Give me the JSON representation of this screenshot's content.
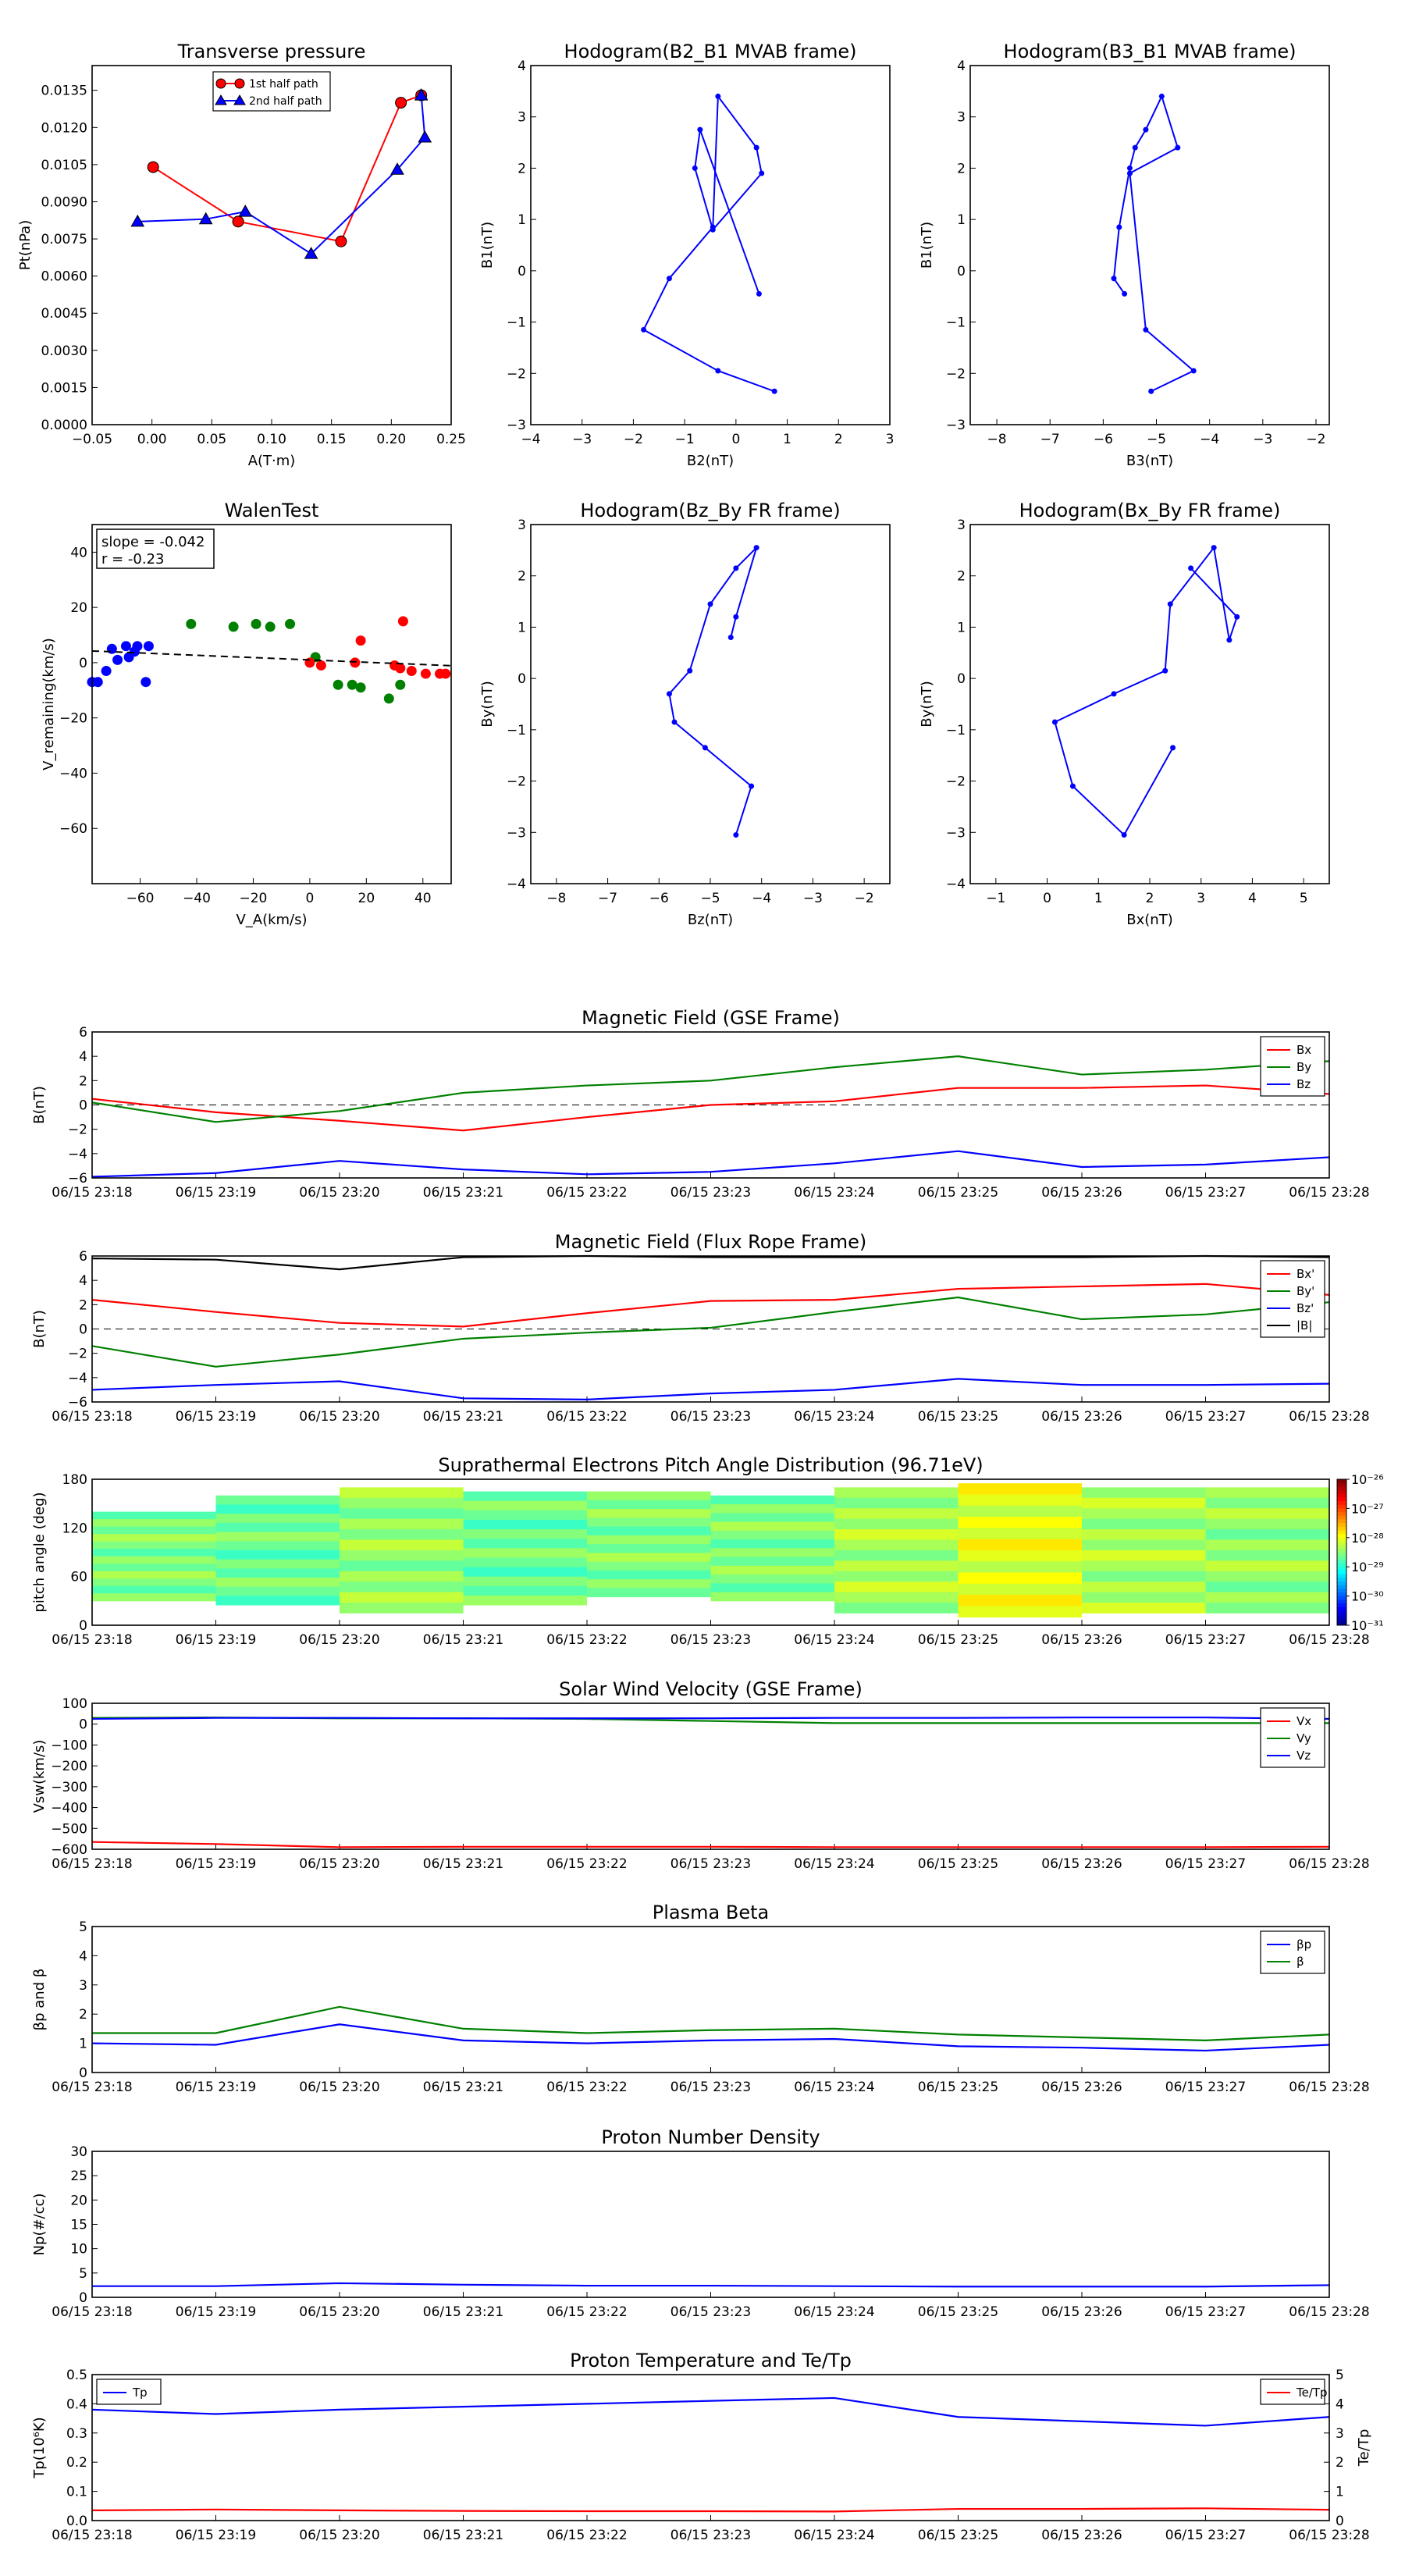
{
  "chart_data": [
    {
      "id": "tp",
      "type": "line",
      "title": "Transverse pressure",
      "xlabel": "A(T·m)",
      "ylabel": "Pt(nPa)",
      "xlim": [
        -0.05,
        0.25
      ],
      "ylim": [
        0,
        0.0145
      ],
      "xticks": [
        "−0.05",
        "0.00",
        "0.05",
        "0.10",
        "0.15",
        "0.20",
        "0.25"
      ],
      "yticks": [
        "0.0000",
        "0.0015",
        "0.0030",
        "0.0045",
        "0.0060",
        "0.0075",
        "0.0090",
        "0.0105",
        "0.0120",
        "0.0135"
      ],
      "legend": "top-center",
      "series": [
        {
          "name": "1st half path",
          "color": "#ff0000",
          "marker": "circle",
          "x": [
            0.001,
            0.072,
            0.158,
            0.208,
            0.225
          ],
          "y": [
            0.0104,
            0.0082,
            0.0074,
            0.013,
            0.0133
          ]
        },
        {
          "name": "2nd half path",
          "color": "#0000ff",
          "marker": "triangle",
          "x": [
            0.225,
            0.228,
            0.205,
            0.133,
            0.078,
            0.045,
            -0.012
          ],
          "y": [
            0.0133,
            0.0116,
            0.0103,
            0.0069,
            0.0086,
            0.0083,
            0.0082
          ]
        }
      ]
    },
    {
      "id": "h1",
      "type": "line",
      "title": "Hodogram(B2_B1 MVAB frame)",
      "xlabel": "B2(nT)",
      "ylabel": "B1(nT)",
      "xlim": [
        -4,
        3
      ],
      "ylim": [
        -3,
        4
      ],
      "xticks": [
        "−4",
        "−3",
        "−2",
        "−1",
        "0",
        "1",
        "2",
        "3"
      ],
      "yticks": [
        "−3",
        "−2",
        "−1",
        "0",
        "1",
        "2",
        "3",
        "4"
      ],
      "series": [
        {
          "color": "#0000ff",
          "x": [
            0.45,
            -0.7,
            -0.8,
            -0.45,
            0.5,
            0.4,
            -0.35,
            -0.45,
            -1.3,
            -1.8,
            -0.35,
            0.75
          ],
          "y": [
            -0.45,
            2.75,
            2.0,
            0.8,
            1.9,
            2.4,
            3.4,
            0.85,
            -0.15,
            -1.15,
            -1.95,
            -2.35
          ]
        }
      ]
    },
    {
      "id": "h2",
      "type": "line",
      "title": "Hodogram(B3_B1 MVAB frame)",
      "xlabel": "B3(nT)",
      "ylabel": "B1(nT)",
      "xlim": [
        -8.5,
        -1.75
      ],
      "ylim": [
        -3,
        4
      ],
      "xticks": [
        "−8",
        "−7",
        "−6",
        "−5",
        "−4",
        "−3",
        "−2"
      ],
      "yticks": [
        "−3",
        "−2",
        "−1",
        "0",
        "1",
        "2",
        "3",
        "4"
      ],
      "series": [
        {
          "color": "#0000ff",
          "x": [
            -5.6,
            -5.8,
            -5.7,
            -5.5,
            -5.4,
            -5.2,
            -4.9,
            -4.6,
            -5.5,
            -5.2,
            -4.3,
            -5.1
          ],
          "y": [
            -0.45,
            -0.15,
            0.85,
            2.0,
            2.4,
            2.75,
            3.4,
            2.4,
            1.9,
            -1.15,
            -1.95,
            -2.35
          ]
        }
      ]
    },
    {
      "id": "walen",
      "type": "scatter",
      "title": "WalenTest",
      "xlabel": "V_A(km/s)",
      "ylabel": "V_remaining(km/s)",
      "xlim": [
        -77,
        50
      ],
      "ylim": [
        -80,
        50
      ],
      "xticks": [
        "−60",
        "−40",
        "−20",
        "0",
        "20",
        "40"
      ],
      "yticks": [
        "−60",
        "−40",
        "−20",
        "0",
        "20",
        "40"
      ],
      "annotation": [
        "slope = -0.042",
        "r = -0.23"
      ],
      "fit": {
        "slope": -0.042,
        "intercept": 1.0
      },
      "series": [
        {
          "color": "#0000ff",
          "x": [
            -77,
            -75,
            -72,
            -70,
            -68,
            -65,
            -64,
            -62,
            -61,
            -58,
            -57
          ],
          "y": [
            -7,
            -7,
            -3,
            5,
            1,
            6,
            2,
            4,
            6,
            -7,
            6
          ]
        },
        {
          "color": "#008000",
          "x": [
            -42,
            -27,
            -19,
            -14,
            -7,
            2,
            10,
            15,
            18,
            28,
            32
          ],
          "y": [
            14,
            13,
            14,
            13,
            14,
            2,
            -8,
            -8,
            -9,
            -13,
            -8
          ]
        },
        {
          "color": "#ff0000",
          "x": [
            0,
            4,
            16,
            18,
            30,
            32,
            33,
            36,
            41,
            46,
            48
          ],
          "y": [
            0,
            -1,
            0,
            8,
            -1,
            -2,
            15,
            -3,
            -4,
            -4,
            -4
          ]
        }
      ]
    },
    {
      "id": "h3",
      "type": "line",
      "title": "Hodogram(Bz_By FR frame)",
      "xlabel": "Bz(nT)",
      "ylabel": "By(nT)",
      "xlim": [
        -8.5,
        -1.5
      ],
      "ylim": [
        -4,
        3
      ],
      "xticks": [
        "−8",
        "−7",
        "−6",
        "−5",
        "−4",
        "−3",
        "−2"
      ],
      "yticks": [
        "−4",
        "−3",
        "−2",
        "−1",
        "0",
        "1",
        "2",
        "3"
      ],
      "series": [
        {
          "color": "#0000ff",
          "x": [
            -4.6,
            -4.5,
            -4.1,
            -4.5,
            -5.0,
            -5.4,
            -5.8,
            -5.7,
            -5.1,
            -4.2,
            -4.5
          ],
          "y": [
            0.8,
            1.2,
            2.55,
            2.15,
            1.45,
            0.15,
            -0.3,
            -0.85,
            -1.35,
            -2.1,
            -3.05
          ]
        }
      ]
    },
    {
      "id": "h4",
      "type": "line",
      "title": "Hodogram(Bx_By FR frame)",
      "xlabel": "Bx(nT)",
      "ylabel": "By(nT)",
      "xlim": [
        -1.5,
        5.5
      ],
      "ylim": [
        -4,
        3
      ],
      "xticks": [
        "−1",
        "0",
        "1",
        "2",
        "3",
        "4",
        "5"
      ],
      "yticks": [
        "−4",
        "−3",
        "−2",
        "−1",
        "0",
        "1",
        "2",
        "3"
      ],
      "series": [
        {
          "color": "#0000ff",
          "x": [
            2.45,
            1.5,
            0.5,
            0.15,
            1.3,
            2.3,
            2.4,
            3.25,
            3.55,
            3.7,
            2.8
          ],
          "y": [
            -1.35,
            -3.05,
            -2.1,
            -0.85,
            -0.3,
            0.15,
            1.45,
            2.55,
            0.75,
            1.2,
            2.15
          ]
        }
      ]
    },
    {
      "id": "mf_gse",
      "type": "line",
      "title": "Magnetic Field (GSE Frame)",
      "ylabel": "B(nT)",
      "ylim": [
        -6,
        6
      ],
      "yticks": [
        "−6",
        "−4",
        "−2",
        "0",
        "2",
        "4",
        "6"
      ],
      "zero_line": true,
      "legend": "top-right",
      "categories": [
        "06/15 23:18",
        "06/15 23:19",
        "06/15 23:20",
        "06/15 23:21",
        "06/15 23:22",
        "06/15 23:23",
        "06/15 23:24",
        "06/15 23:25",
        "06/15 23:26",
        "06/15 23:27",
        "06/15 23:28"
      ],
      "series": [
        {
          "name": "Bx",
          "color": "#ff0000",
          "values": [
            0.5,
            -0.6,
            -1.3,
            -2.1,
            -1.0,
            0.0,
            0.3,
            1.4,
            1.4,
            1.6,
            0.9
          ]
        },
        {
          "name": "By",
          "color": "#008000",
          "values": [
            0.2,
            -1.4,
            -0.5,
            1.0,
            1.6,
            2.0,
            3.1,
            4.0,
            2.5,
            2.9,
            3.6
          ]
        },
        {
          "name": "Bz",
          "color": "#0000ff",
          "values": [
            -5.9,
            -5.6,
            -4.6,
            -5.3,
            -5.7,
            -5.5,
            -4.8,
            -3.8,
            -5.1,
            -4.9,
            -4.3
          ]
        }
      ]
    },
    {
      "id": "mf_fr",
      "type": "line",
      "title": "Magnetic Field (Flux Rope Frame)",
      "ylabel": "B(nT)",
      "ylim": [
        -6,
        6
      ],
      "yticks": [
        "−6",
        "−4",
        "−2",
        "0",
        "2",
        "4",
        "6"
      ],
      "zero_line": true,
      "legend": "top-right",
      "categories": [
        "06/15 23:18",
        "06/15 23:19",
        "06/15 23:20",
        "06/15 23:21",
        "06/15 23:22",
        "06/15 23:23",
        "06/15 23:24",
        "06/15 23:25",
        "06/15 23:26",
        "06/15 23:27",
        "06/15 23:28"
      ],
      "series": [
        {
          "name": "Bx'",
          "color": "#ff0000",
          "values": [
            2.4,
            1.4,
            0.5,
            0.2,
            1.3,
            2.3,
            2.4,
            3.3,
            3.5,
            3.7,
            2.8
          ]
        },
        {
          "name": "By'",
          "color": "#008000",
          "values": [
            -1.4,
            -3.1,
            -2.1,
            -0.8,
            -0.3,
            0.1,
            1.4,
            2.6,
            0.8,
            1.2,
            2.2
          ]
        },
        {
          "name": "Bz'",
          "color": "#0000ff",
          "values": [
            -5.0,
            -4.6,
            -4.3,
            -5.7,
            -5.8,
            -5.3,
            -5.0,
            -4.1,
            -4.6,
            -4.6,
            -4.5
          ]
        },
        {
          "name": "|B|",
          "color": "#000000",
          "values": [
            5.8,
            5.7,
            4.9,
            5.9,
            6.0,
            5.9,
            5.9,
            5.9,
            5.9,
            6.0,
            5.9
          ]
        }
      ]
    },
    {
      "id": "pad",
      "type": "heatmap",
      "title": "Suprathermal Electrons Pitch Angle Distribution (96.71eV)",
      "ylabel": "pitch angle (deg)",
      "ylim": [
        0,
        180
      ],
      "yticks": [
        "0",
        "60",
        "120",
        "180"
      ],
      "colorbar_ticks": [
        "10⁻³¹",
        "10⁻³⁰",
        "10⁻²⁹",
        "10⁻²⁸",
        "10⁻²⁷",
        "10⁻²⁶"
      ],
      "categories": [
        "06/15 23:18",
        "06/15 23:19",
        "06/15 23:20",
        "06/15 23:21",
        "06/15 23:22",
        "06/15 23:23",
        "06/15 23:24",
        "06/15 23:25",
        "06/15 23:26",
        "06/15 23:27",
        "06/15 23:28"
      ],
      "bins": [
        {
          "pa": [
            30,
            140
          ],
          "log10_flux": -28.5
        },
        {
          "pa": [
            25,
            160
          ],
          "log10_flux": -28.6
        },
        {
          "pa": [
            15,
            170
          ],
          "log10_flux": -28.4
        },
        {
          "pa": [
            25,
            165
          ],
          "log10_flux": -28.6
        },
        {
          "pa": [
            35,
            165
          ],
          "log10_flux": -28.5
        },
        {
          "pa": [
            30,
            160
          ],
          "log10_flux": -28.5
        },
        {
          "pa": [
            15,
            170
          ],
          "log10_flux": -28.3
        },
        {
          "pa": [
            10,
            175
          ],
          "log10_flux": -28.0
        },
        {
          "pa": [
            15,
            170
          ],
          "log10_flux": -28.3
        },
        {
          "pa": [
            15,
            170
          ],
          "log10_flux": -28.4
        }
      ]
    },
    {
      "id": "vsw",
      "type": "line",
      "title": "Solar Wind Velocity (GSE Frame)",
      "ylabel": "Vsw(km/s)",
      "ylim": [
        -600,
        100
      ],
      "yticks": [
        "−600",
        "−500",
        "−400",
        "−300",
        "−200",
        "−100",
        "0",
        "100"
      ],
      "legend": "top-right",
      "categories": [
        "06/15 23:18",
        "06/15 23:19",
        "06/15 23:20",
        "06/15 23:21",
        "06/15 23:22",
        "06/15 23:23",
        "06/15 23:24",
        "06/15 23:25",
        "06/15 23:26",
        "06/15 23:27",
        "06/15 23:28"
      ],
      "series": [
        {
          "name": "Vx",
          "color": "#ff0000",
          "values": [
            -565,
            -575,
            -590,
            -588,
            -588,
            -588,
            -590,
            -590,
            -590,
            -590,
            -588
          ]
        },
        {
          "name": "Vy",
          "color": "#008000",
          "values": [
            30,
            32,
            28,
            28,
            25,
            15,
            5,
            5,
            5,
            5,
            5
          ]
        },
        {
          "name": "Vz",
          "color": "#0000ff",
          "values": [
            25,
            30,
            30,
            28,
            28,
            28,
            30,
            30,
            32,
            32,
            25
          ]
        }
      ]
    },
    {
      "id": "beta",
      "type": "line",
      "title": "Plasma Beta",
      "ylabel": "βp and β",
      "ylim": [
        0,
        5
      ],
      "yticks": [
        "0",
        "1",
        "2",
        "3",
        "4",
        "5"
      ],
      "legend": "top-right",
      "categories": [
        "06/15 23:18",
        "06/15 23:19",
        "06/15 23:20",
        "06/15 23:21",
        "06/15 23:22",
        "06/15 23:23",
        "06/15 23:24",
        "06/15 23:25",
        "06/15 23:26",
        "06/15 23:27",
        "06/15 23:28"
      ],
      "series": [
        {
          "name": "βp",
          "color": "#0000ff",
          "values": [
            1.0,
            0.95,
            1.65,
            1.1,
            1.0,
            1.1,
            1.15,
            0.9,
            0.85,
            0.75,
            0.95
          ]
        },
        {
          "name": "β",
          "color": "#008000",
          "values": [
            1.35,
            1.35,
            2.25,
            1.5,
            1.35,
            1.45,
            1.5,
            1.3,
            1.2,
            1.1,
            1.3
          ]
        }
      ]
    },
    {
      "id": "np",
      "type": "line",
      "title": "Proton Number Density",
      "ylabel": "Np(#/cc)",
      "ylim": [
        0,
        30
      ],
      "yticks": [
        "0",
        "5",
        "10",
        "15",
        "20",
        "25",
        "30"
      ],
      "categories": [
        "06/15 23:18",
        "06/15 23:19",
        "06/15 23:20",
        "06/15 23:21",
        "06/15 23:22",
        "06/15 23:23",
        "06/15 23:24",
        "06/15 23:25",
        "06/15 23:26",
        "06/15 23:27",
        "06/15 23:28"
      ],
      "series": [
        {
          "color": "#0000ff",
          "values": [
            2.3,
            2.3,
            2.9,
            2.6,
            2.4,
            2.4,
            2.3,
            2.2,
            2.2,
            2.2,
            2.5
          ]
        }
      ]
    },
    {
      "id": "temp",
      "type": "line",
      "title": "Proton Temperature and Te/Tp",
      "ylabel": "Tp(10⁶K)",
      "ylabel_right": "Te/Tp",
      "ylim": [
        0,
        0.5
      ],
      "yticks": [
        "0.0",
        "0.1",
        "0.2",
        "0.3",
        "0.4",
        "0.5"
      ],
      "ylim_right": [
        0,
        5
      ],
      "yticks_right": [
        "0",
        "1",
        "2",
        "3",
        "4",
        "5"
      ],
      "categories": [
        "06/15 23:18",
        "06/15 23:19",
        "06/15 23:20",
        "06/15 23:21",
        "06/15 23:22",
        "06/15 23:23",
        "06/15 23:24",
        "06/15 23:25",
        "06/15 23:26",
        "06/15 23:27",
        "06/15 23:28"
      ],
      "series": [
        {
          "name": "Tp",
          "color": "#0000ff",
          "axis": "left",
          "legend": "top-left",
          "values": [
            0.38,
            0.365,
            0.38,
            0.39,
            0.4,
            0.41,
            0.42,
            0.355,
            0.34,
            0.325,
            0.355
          ]
        },
        {
          "name": "Te/Tp",
          "color": "#ff0000",
          "axis": "right",
          "legend": "top-right",
          "values": [
            0.35,
            0.38,
            0.35,
            0.33,
            0.32,
            0.32,
            0.31,
            0.4,
            0.4,
            0.42,
            0.37
          ]
        }
      ]
    }
  ]
}
